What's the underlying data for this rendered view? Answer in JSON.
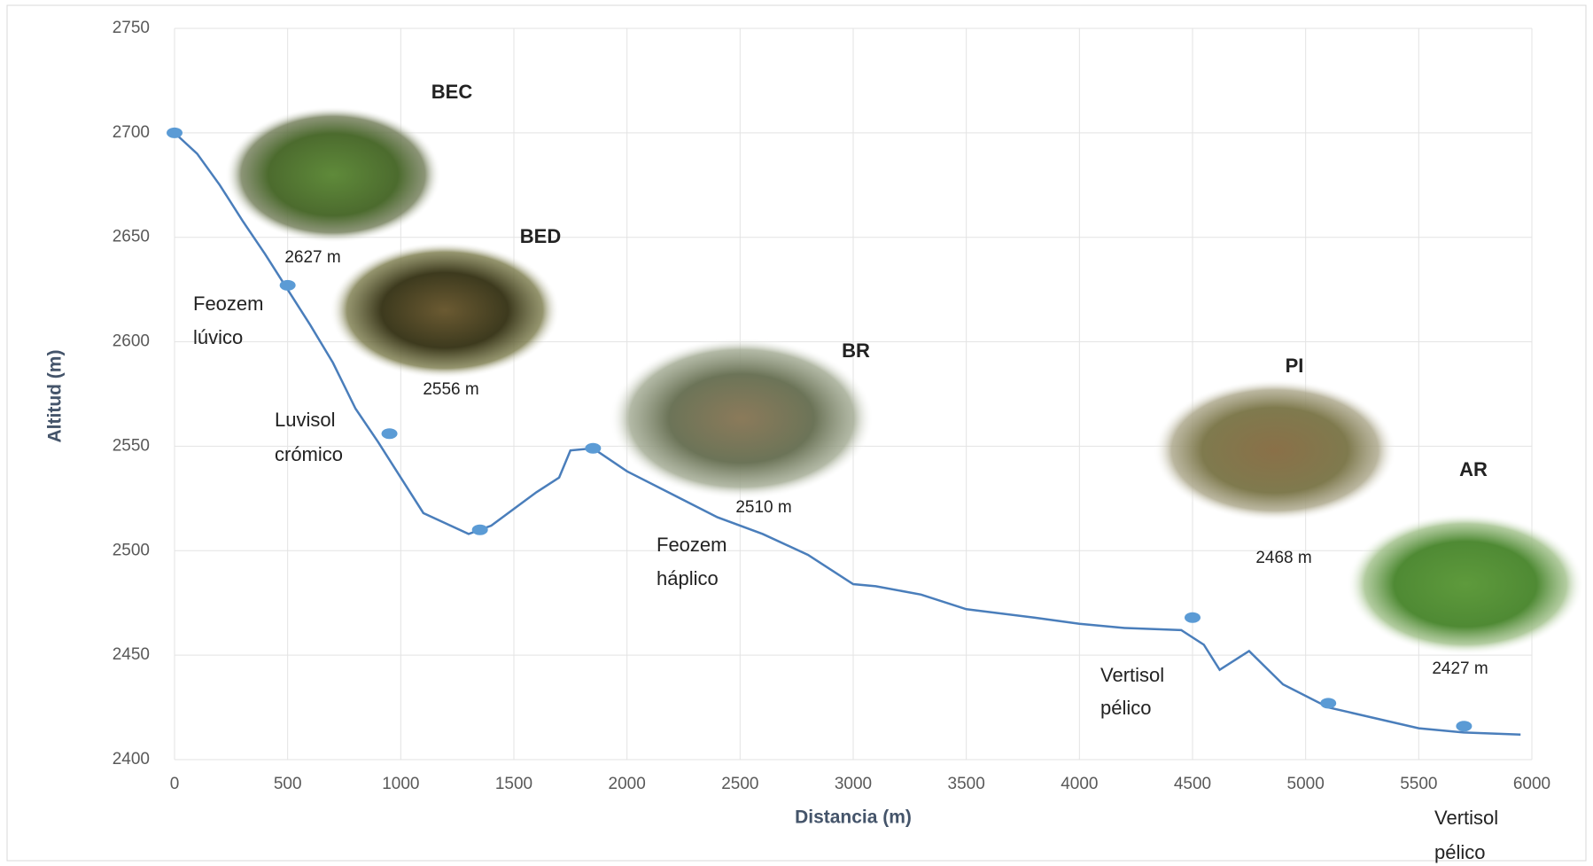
{
  "chart_data": {
    "type": "line",
    "xlabel": "Distancia (m)",
    "ylabel": "Altitud (m)",
    "xlim": [
      0,
      6000
    ],
    "xticks": [
      0,
      500,
      1000,
      1500,
      2000,
      2500,
      3000,
      3500,
      4000,
      4500,
      5000,
      5500,
      6000
    ],
    "ylim": [
      2400,
      2750
    ],
    "yticks": [
      2400,
      2450,
      2500,
      2550,
      2600,
      2650,
      2700,
      2750
    ],
    "grid": true,
    "series": [
      {
        "type": "line",
        "color": "#4a7ebb",
        "x": [
          0,
          100,
          200,
          300,
          400,
          500,
          600,
          700,
          800,
          900,
          1000,
          1100,
          1200,
          1300,
          1400,
          1500,
          1600,
          1700,
          1750,
          1850,
          2000,
          2200,
          2400,
          2600,
          2800,
          3000,
          3100,
          3300,
          3500,
          3800,
          4000,
          4200,
          4450,
          4550,
          4620,
          4750,
          4900,
          5100,
          5300,
          5500,
          5700,
          5950
        ],
        "values": [
          2700,
          2690,
          2675,
          2658,
          2642,
          2625,
          2608,
          2590,
          2568,
          2552,
          2535,
          2518,
          2513,
          2508,
          2512,
          2520,
          2528,
          2535,
          2548,
          2549,
          2538,
          2527,
          2516,
          2508,
          2498,
          2484,
          2483,
          2479,
          2472,
          2468,
          2465,
          2463,
          2462,
          2455,
          2443,
          2452,
          2436,
          2425,
          2420,
          2415,
          2413,
          2412
        ]
      },
      {
        "type": "scatter",
        "color": "#5b9bd5",
        "x": [
          0,
          500,
          950,
          1350,
          1850,
          4500,
          5100,
          5700
        ],
        "values": [
          2700,
          2627,
          2556,
          2510,
          2549,
          2468,
          2427,
          2416
        ]
      }
    ],
    "annotations": [
      "BEC",
      "BED",
      "BR",
      "PI",
      "AR",
      "2627 m",
      "2556 m",
      "2510 m",
      "2468 m",
      "2427 m",
      "Feozem",
      "lúvico",
      "Luvisol",
      "crómico",
      "Feozem",
      "háplico",
      "Vertisol",
      "pélico",
      "Vertisol",
      "pélico"
    ]
  }
}
